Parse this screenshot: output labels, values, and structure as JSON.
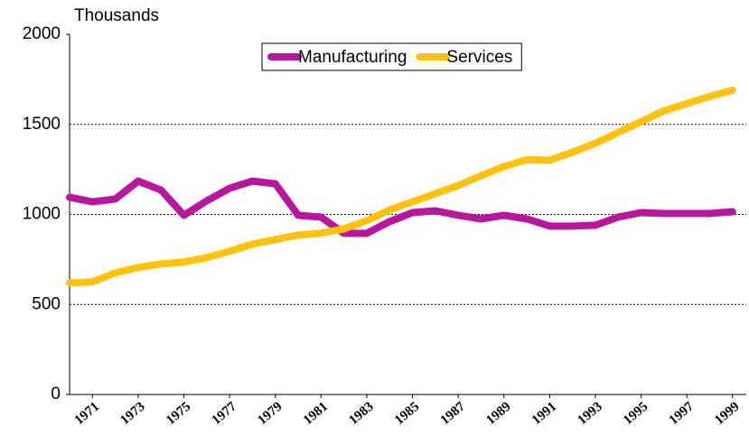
{
  "chart_data": {
    "type": "line",
    "y_label": "Thousands",
    "x": [
      1970,
      1971,
      1972,
      1973,
      1974,
      1975,
      1976,
      1977,
      1978,
      1979,
      1980,
      1981,
      1982,
      1983,
      1984,
      1985,
      1986,
      1987,
      1988,
      1989,
      1990,
      1991,
      1992,
      1993,
      1994,
      1995,
      1996,
      1997,
      1998,
      1999
    ],
    "series": [
      {
        "name": "Manufacturing",
        "color": "#b8179c",
        "values": [
          1095,
          1070,
          1085,
          1185,
          1135,
          995,
          1075,
          1145,
          1185,
          1170,
          995,
          985,
          895,
          895,
          960,
          1010,
          1020,
          995,
          975,
          995,
          975,
          935,
          935,
          940,
          985,
          1010,
          1005,
          1005,
          1005,
          1015
        ]
      },
      {
        "name": "Services",
        "color": "#ffc20e",
        "values": [
          620,
          625,
          675,
          705,
          725,
          735,
          760,
          795,
          835,
          860,
          885,
          895,
          920,
          965,
          1025,
          1070,
          1115,
          1160,
          1215,
          1265,
          1305,
          1300,
          1345,
          1395,
          1455,
          1515,
          1575,
          1615,
          1655,
          1690
        ]
      }
    ],
    "xlim": [
      1970,
      1999.6
    ],
    "xticks": [
      1971,
      1973,
      1975,
      1977,
      1979,
      1981,
      1983,
      1985,
      1987,
      1989,
      1991,
      1993,
      1995,
      1997,
      1999
    ],
    "ylim": [
      0,
      2000
    ],
    "yticks": [
      0,
      500,
      1000,
      1500,
      2000
    ],
    "grid": true,
    "legend": "top"
  }
}
